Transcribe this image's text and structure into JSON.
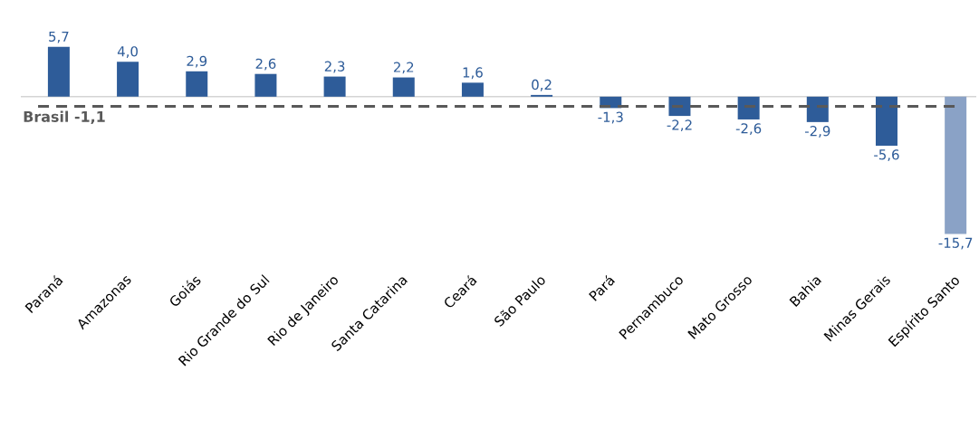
{
  "chart_data": {
    "type": "bar",
    "categories": [
      "Paraná",
      "Amazonas",
      "Goiás",
      "Rio Grande do Sul",
      "Rio de Janeiro",
      "Santa Catarina",
      "Ceará",
      "São Paulo",
      "Pará",
      "Pernambuco",
      "Mato Grosso",
      "Bahia",
      "Minas Gerais",
      "Espírito Santo"
    ],
    "values": [
      5.7,
      4.0,
      2.9,
      2.6,
      2.3,
      2.2,
      1.6,
      0.2,
      -1.3,
      -2.2,
      -2.6,
      -2.9,
      -5.6,
      -15.7
    ],
    "value_labels": [
      "5,7",
      "4,0",
      "2,9",
      "2,6",
      "2,3",
      "2,2",
      "1,6",
      "0,2",
      "-1,3",
      "-2,2",
      "-2,6",
      "-2,9",
      "-5,6",
      "-15,7"
    ],
    "colors": [
      "#2e5c99",
      "#2e5c99",
      "#2e5c99",
      "#2e5c99",
      "#2e5c99",
      "#2e5c99",
      "#2e5c99",
      "#2e5c99",
      "#2e5c99",
      "#2e5c99",
      "#2e5c99",
      "#2e5c99",
      "#2e5c99",
      "#8aa2c6"
    ],
    "ref_lines": [
      {
        "axis": "y",
        "value": -1.1,
        "label": "Brasil -1,1",
        "color": "#595959",
        "line_style": "dashed"
      }
    ],
    "relative": false
  }
}
